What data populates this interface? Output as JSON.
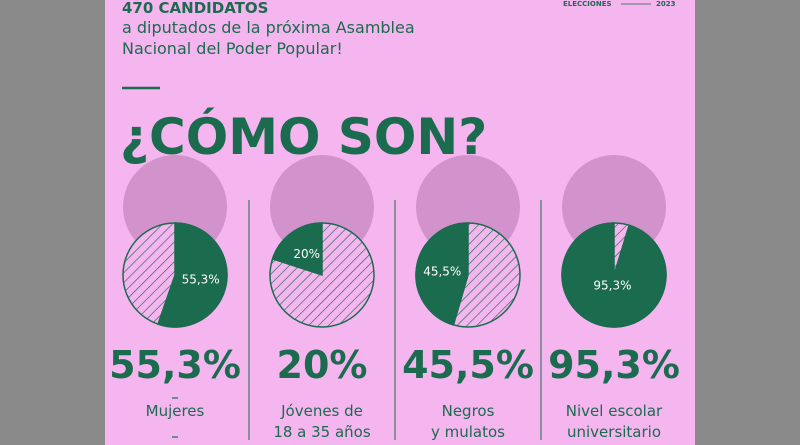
{
  "header": {
    "kicker": "470 CANDIDATOS",
    "lines": [
      "a diputados de la próxima Asamblea",
      "Nacional del Poder Popular!"
    ],
    "badge": "ELECCIONES",
    "year": "2023"
  },
  "title": "¿CÓMO SON?",
  "chart_data": [
    {
      "type": "pie",
      "values": [
        55.3
      ],
      "value_labels": [
        "55,3%"
      ],
      "label": [
        "Mujeres"
      ],
      "color": "#1b6b4e",
      "clockwise": true
    },
    {
      "type": "pie",
      "values": [
        20
      ],
      "value_labels": [
        "20%"
      ],
      "label": [
        "Jóvenes de",
        "18 a 35 años"
      ],
      "color": "#1b6b4e",
      "clockwise": false
    },
    {
      "type": "pie",
      "values": [
        45.5
      ],
      "value_labels": [
        "45,5%"
      ],
      "label": [
        "Negros",
        "y mulatos"
      ],
      "color": "#1b6b4e",
      "clockwise": false
    },
    {
      "type": "pie",
      "values": [
        95.3
      ],
      "value_labels": [
        "95,3%"
      ],
      "label": [
        "Nivel escolar",
        "universitario"
      ],
      "color": "#1b6b4e",
      "clockwise": false
    }
  ]
}
